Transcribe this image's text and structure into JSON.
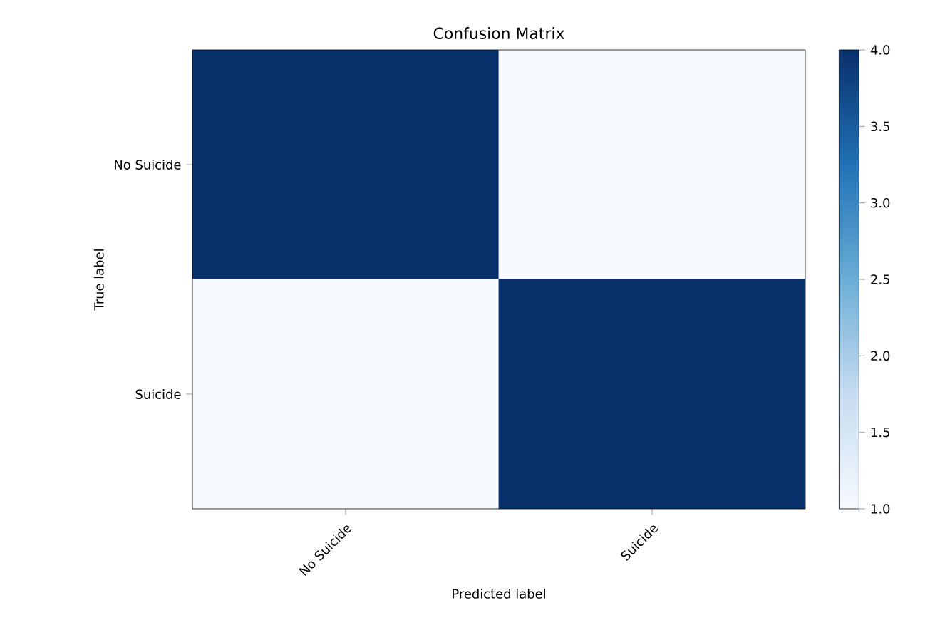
{
  "chart_data": {
    "type": "heatmap",
    "title": "Confusion Matrix",
    "xlabel": "Predicted label",
    "ylabel": "True label",
    "categories": [
      "No Suicide",
      "Suicide"
    ],
    "y_categories": [
      "No Suicide",
      "Suicide"
    ],
    "cells": [
      [
        4,
        1
      ],
      [
        1,
        4
      ]
    ],
    "clim": [
      1,
      4
    ],
    "cticks": [
      {
        "value": 1,
        "label": "1.0"
      },
      {
        "value": 1.5,
        "label": "1.5"
      },
      {
        "value": 2,
        "label": "2.0"
      },
      {
        "value": 2.5,
        "label": "2.5"
      },
      {
        "value": 3,
        "label": "3.0"
      },
      {
        "value": 3.5,
        "label": "3.5"
      },
      {
        "value": 4,
        "label": "4.0"
      }
    ]
  }
}
